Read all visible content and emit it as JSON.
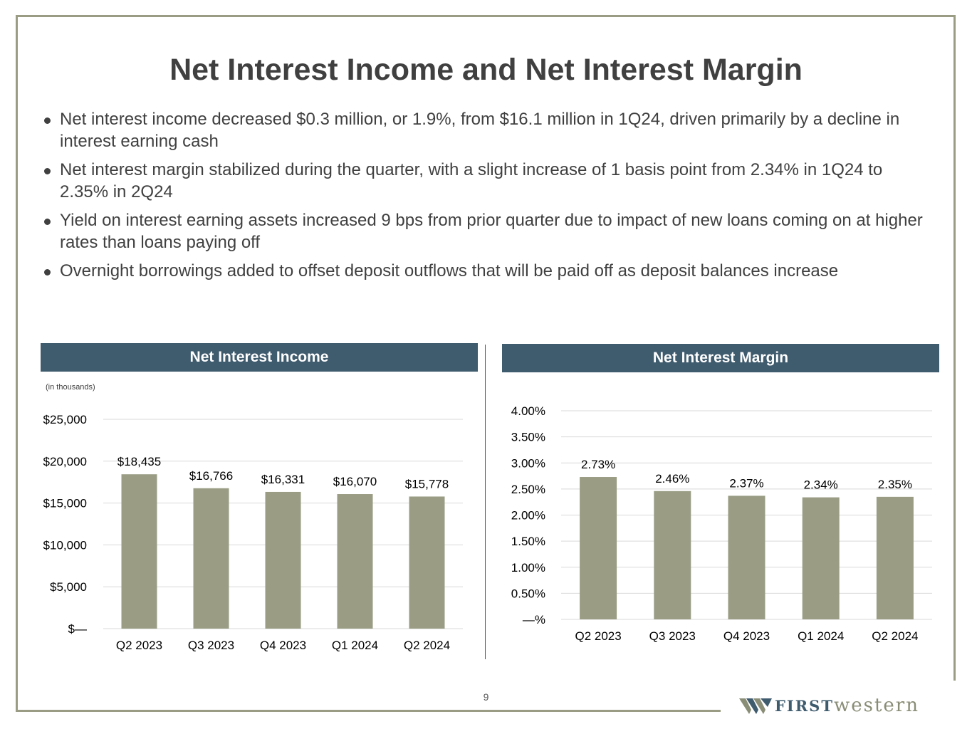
{
  "title": "Net Interest Income and Net Interest Margin",
  "bullets": [
    "Net interest income decreased $0.3 million, or 1.9%, from $16.1 million in 1Q24, driven primarily by a decline in interest earning cash",
    "Net interest margin stabilized during the quarter, with a slight increase of 1 basis point from 2.34% in 1Q24 to 2.35% in 2Q24",
    "Yield on interest earning assets increased 9 bps from prior quarter due to impact of new loans coming on at higher rates than loans paying off",
    "Overnight borrowings added to offset deposit outflows that will be paid off as deposit balances increase"
  ],
  "page_number": "9",
  "logo": {
    "first": "FIRST",
    "western": "western",
    "icon": "w-chevron-logo-icon"
  },
  "colors": {
    "bar": "#9a9d84",
    "header": "#3f5b6e",
    "frame": "#9a9d84",
    "text": "#404040"
  },
  "chart_data": [
    {
      "type": "bar",
      "title": "Net Interest Income",
      "note": "(in thousands)",
      "categories": [
        "Q2 2023",
        "Q3 2023",
        "Q4 2023",
        "Q1 2024",
        "Q2 2024"
      ],
      "values": [
        18435,
        16766,
        16331,
        16070,
        15778
      ],
      "value_labels": [
        "$18,435",
        "$16,766",
        "$16,331",
        "$16,070",
        "$15,778"
      ],
      "yticks": [
        0,
        5000,
        10000,
        15000,
        20000,
        25000
      ],
      "ytick_labels": [
        "$—",
        "$5,000",
        "$10,000",
        "$15,000",
        "$20,000",
        "$25,000"
      ],
      "ylim": [
        0,
        25000
      ],
      "grid": true
    },
    {
      "type": "bar",
      "title": "Net Interest Margin",
      "categories": [
        "Q2 2023",
        "Q3 2023",
        "Q4 2023",
        "Q1 2024",
        "Q2 2024"
      ],
      "values": [
        2.73,
        2.46,
        2.37,
        2.34,
        2.35
      ],
      "value_labels": [
        "2.73%",
        "2.46%",
        "2.37%",
        "2.34%",
        "2.35%"
      ],
      "yticks": [
        0,
        0.5,
        1.0,
        1.5,
        2.0,
        2.5,
        3.0,
        3.5,
        4.0
      ],
      "ytick_labels": [
        "—%",
        "0.50%",
        "1.00%",
        "1.50%",
        "2.00%",
        "2.50%",
        "3.00%",
        "3.50%",
        "4.00%"
      ],
      "ylim": [
        0,
        4.0
      ],
      "grid": true
    }
  ]
}
